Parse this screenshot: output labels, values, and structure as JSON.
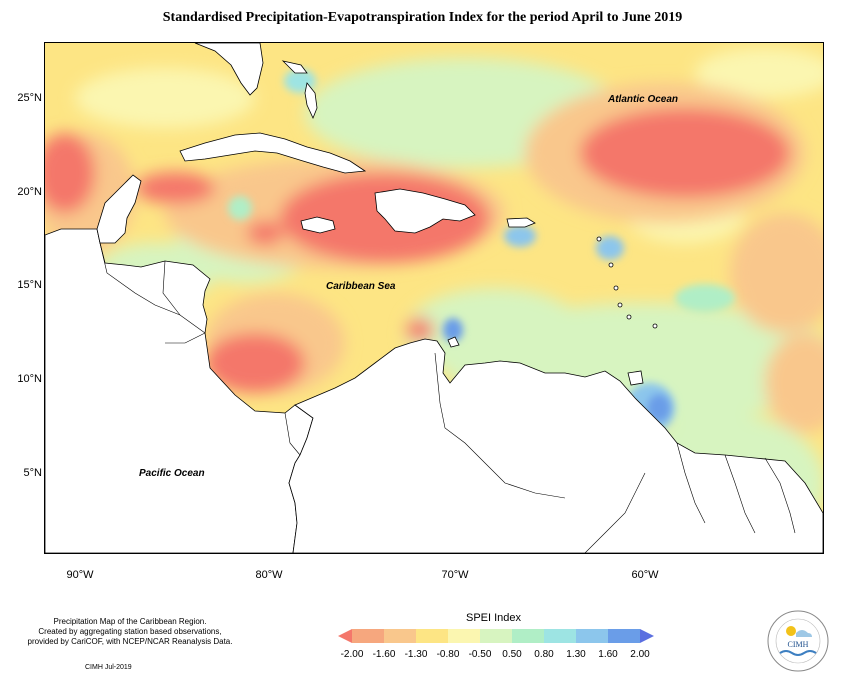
{
  "title": "Standardised Precipitation-Evapotranspiration Index for the period April to June 2019",
  "lat_labels": [
    "25°N",
    "20°N",
    "15°N",
    "10°N",
    "5°N"
  ],
  "lon_labels": [
    "90°W",
    "80°W",
    "70°W",
    "60°W"
  ],
  "ocean_labels": {
    "atlantic": "Atlantic Ocean",
    "caribbean": "Caribbean Sea",
    "pacific": "Pacific Ocean"
  },
  "footer": {
    "line1": "Precipitation Map of the Caribbean Region.",
    "line2": "Created by aggregating station based observations,",
    "line3": "provided by CariCOF, with NCEP/NCAR Reanalysis Data.",
    "credit": "CIMH Jul-2019"
  },
  "legend": {
    "title": "SPEI Index",
    "labels": [
      "-2.00",
      "-1.60",
      "-1.30",
      "-0.80",
      "-0.50",
      "0.50",
      "0.80",
      "1.30",
      "1.60",
      "2.00"
    ],
    "colors": [
      "#f4776b",
      "#f6a77e",
      "#f9c78c",
      "#fde584",
      "#fbf6b0",
      "#d7f4c0",
      "#b0eec6",
      "#9de4e3",
      "#8cc6ec",
      "#6a9de8",
      "#5b6fe0"
    ]
  },
  "colors": {
    "very_dry": "#f4776b",
    "dry": "#f6a77e",
    "moderately_dry": "#f9c78c",
    "slightly_dry": "#fde584",
    "normal": "#fbf6b0",
    "slightly_wet": "#d7f4c0",
    "wet": "#b0eec6",
    "very_wet": "#9de4e3",
    "extremely_wet": "#6a9de8",
    "land": "#ffffff"
  },
  "logo": {
    "text": "CIMH"
  }
}
